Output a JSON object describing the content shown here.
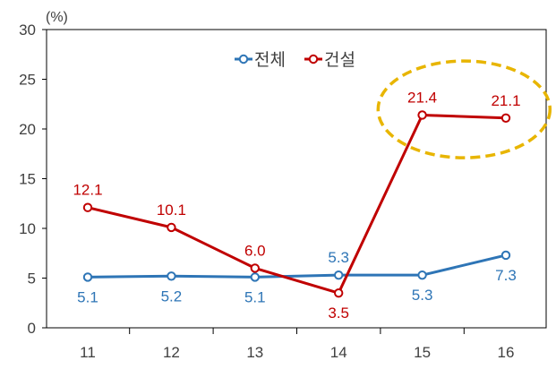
{
  "chart_data": {
    "type": "line",
    "unit_label": "(%)",
    "x": [
      "11",
      "12",
      "13",
      "14",
      "15",
      "16"
    ],
    "ylim": [
      0,
      30
    ],
    "yticks": [
      "0",
      "5",
      "10",
      "15",
      "20",
      "25",
      "30"
    ],
    "grid": false,
    "legend_position": "top-center",
    "series": [
      {
        "name": "전체",
        "color": "#2e75b6",
        "values": [
          5.1,
          5.2,
          5.1,
          5.3,
          5.3,
          7.3
        ],
        "labels": [
          "5.1",
          "5.2",
          "5.1",
          "5.3",
          "5.3",
          "7.3"
        ],
        "label_pos": [
          "below",
          "below",
          "below",
          "above",
          "below",
          "below"
        ]
      },
      {
        "name": "건설",
        "color": "#c00000",
        "values": [
          12.1,
          10.1,
          6.0,
          3.5,
          21.4,
          21.1
        ],
        "labels": [
          "12.1",
          "10.1",
          "6.0",
          "3.5",
          "21.4",
          "21.1"
        ],
        "label_pos": [
          "above",
          "above",
          "above",
          "below",
          "above",
          "above"
        ]
      }
    ],
    "highlight": {
      "shape": "dashed-ellipse",
      "color": "#e8b500",
      "around_points": [
        "15",
        "16"
      ]
    }
  }
}
